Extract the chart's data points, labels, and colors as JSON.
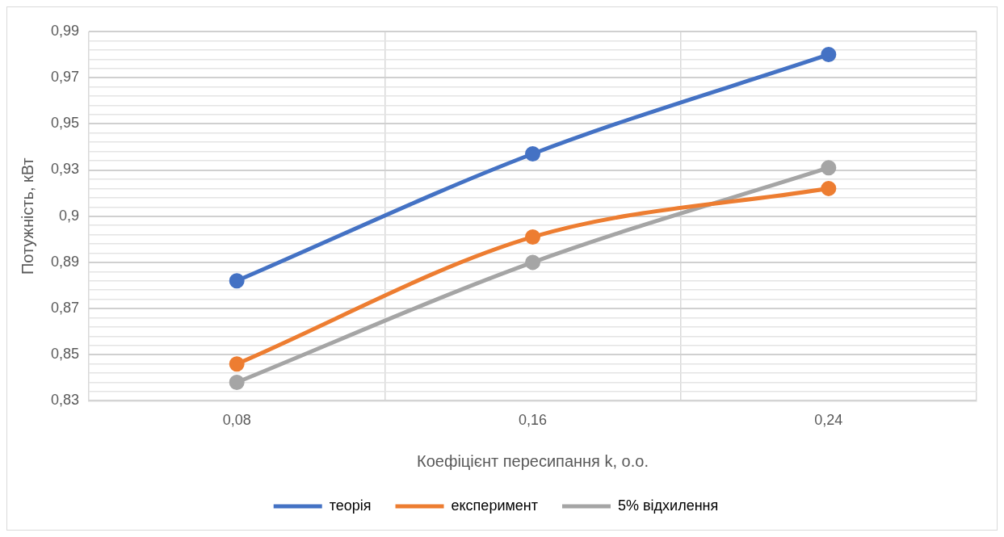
{
  "chart_data": {
    "type": "line",
    "xlabel": "Коефіцієнт пересипання k, о.о.",
    "ylabel": "Потужність, кВт",
    "categories": [
      "0,08",
      "0,16",
      "0,24"
    ],
    "series": [
      {
        "name": "теорія",
        "color": "#4472c4",
        "values": [
          0.882,
          0.937,
          0.98
        ]
      },
      {
        "name": "експеримент",
        "color": "#ed7d31",
        "values": [
          0.846,
          0.901,
          0.922
        ]
      },
      {
        "name": "5% відхилення",
        "color": "#a5a5a5",
        "values": [
          0.838,
          0.89,
          0.931
        ]
      }
    ],
    "ylim": [
      0.83,
      0.99
    ],
    "yticks": [
      {
        "value": 0.83,
        "label": "0,83"
      },
      {
        "value": 0.834,
        "label": null
      },
      {
        "value": 0.838,
        "label": null
      },
      {
        "value": 0.842,
        "label": null
      },
      {
        "value": 0.846,
        "label": null
      },
      {
        "value": 0.85,
        "label": "0,85"
      },
      {
        "value": 0.854,
        "label": null
      },
      {
        "value": 0.858,
        "label": null
      },
      {
        "value": 0.862,
        "label": null
      },
      {
        "value": 0.866,
        "label": null
      },
      {
        "value": 0.87,
        "label": "0,87"
      },
      {
        "value": 0.874,
        "label": null
      },
      {
        "value": 0.878,
        "label": null
      },
      {
        "value": 0.882,
        "label": null
      },
      {
        "value": 0.886,
        "label": null
      },
      {
        "value": 0.89,
        "label": "0,89"
      },
      {
        "value": 0.894,
        "label": null
      },
      {
        "value": 0.898,
        "label": null
      },
      {
        "value": 0.902,
        "label": null
      },
      {
        "value": 0.906,
        "label": null
      },
      {
        "value": 0.91,
        "label": "0,9"
      },
      {
        "value": 0.914,
        "label": null
      },
      {
        "value": 0.918,
        "label": null
      },
      {
        "value": 0.922,
        "label": null
      },
      {
        "value": 0.926,
        "label": null
      },
      {
        "value": 0.93,
        "label": "0,93"
      },
      {
        "value": 0.934,
        "label": null
      },
      {
        "value": 0.938,
        "label": null
      },
      {
        "value": 0.942,
        "label": null
      },
      {
        "value": 0.946,
        "label": null
      },
      {
        "value": 0.95,
        "label": "0,95"
      },
      {
        "value": 0.954,
        "label": null
      },
      {
        "value": 0.958,
        "label": null
      },
      {
        "value": 0.962,
        "label": null
      },
      {
        "value": 0.966,
        "label": null
      },
      {
        "value": 0.97,
        "label": "0,97"
      },
      {
        "value": 0.974,
        "label": null
      },
      {
        "value": 0.978,
        "label": null
      },
      {
        "value": 0.982,
        "label": null
      },
      {
        "value": 0.986,
        "label": null
      },
      {
        "value": 0.99,
        "label": "0,99"
      }
    ],
    "grid": true,
    "legend": "bottom",
    "marker": "circle",
    "line_style": "solid"
  }
}
